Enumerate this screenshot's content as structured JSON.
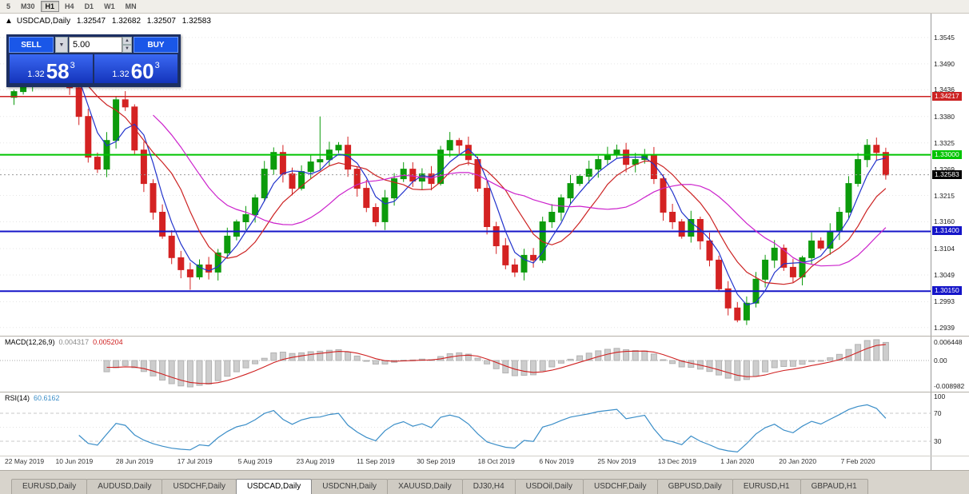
{
  "toolbar": {
    "timeframes": [
      "5",
      "M30",
      "H1",
      "H4",
      "D1",
      "W1",
      "MN"
    ],
    "active": "H1"
  },
  "chart_header": {
    "icon": "▲",
    "symbol": "USDCAD,Daily",
    "open": "1.32547",
    "high": "1.32682",
    "low": "1.32507",
    "close": "1.32583"
  },
  "trade_panel": {
    "sell_label": "SELL",
    "buy_label": "BUY",
    "volume": "5.00",
    "sell_price": {
      "prefix": "1.32",
      "big": "58",
      "sup": "3"
    },
    "buy_price": {
      "prefix": "1.32",
      "big": "60",
      "sup": "3"
    }
  },
  "chart_data": {
    "type": "candlestick",
    "symbol": "USDCAD",
    "timeframe": "Daily",
    "ylim": [
      1.2922,
      1.3595
    ],
    "y_ticks": [
      "1.3545",
      "1.3490",
      "1.3436",
      "1.3380",
      "1.3325",
      "1.3269",
      "1.3215",
      "1.3160",
      "1.3104",
      "1.3049",
      "1.2993",
      "1.2939"
    ],
    "x_labels": [
      "22 May 2019",
      "10 Jun 2019",
      "28 Jun 2019",
      "17 Jul 2019",
      "5 Aug 2019",
      "23 Aug 2019",
      "11 Sep 2019",
      "30 Sep 2019",
      "18 Oct 2019",
      "6 Nov 2019",
      "25 Nov 2019",
      "13 Dec 2019",
      "1 Jan 2020",
      "20 Jan 2020",
      "7 Feb 2020"
    ],
    "open_first": 1.342,
    "closes": [
      1.3432,
      1.3445,
      1.347,
      1.3505,
      1.352,
      1.3495,
      1.344,
      1.338,
      1.3295,
      1.327,
      1.333,
      1.3415,
      1.34,
      1.331,
      1.324,
      1.318,
      1.313,
      1.3085,
      1.306,
      1.3045,
      1.307,
      1.3055,
      1.3095,
      1.313,
      1.316,
      1.3175,
      1.321,
      1.327,
      1.3305,
      1.326,
      1.323,
      1.3265,
      1.3285,
      1.329,
      1.331,
      1.332,
      1.327,
      1.323,
      1.319,
      1.316,
      1.321,
      1.325,
      1.327,
      1.3245,
      1.326,
      1.324,
      1.331,
      1.333,
      1.332,
      1.329,
      1.323,
      1.315,
      1.311,
      1.307,
      1.3055,
      1.309,
      1.308,
      1.316,
      1.318,
      1.321,
      1.324,
      1.3255,
      1.327,
      1.329,
      1.33,
      1.331,
      1.328,
      1.329,
      1.33,
      1.325,
      1.318,
      1.316,
      1.313,
      1.3165,
      1.312,
      1.308,
      1.302,
      1.298,
      1.2955,
      1.299,
      1.304,
      1.308,
      1.3105,
      1.3065,
      1.3045,
      1.3085,
      1.312,
      1.3105,
      1.314,
      1.318,
      1.324,
      1.329,
      1.332,
      1.3305,
      1.3258
    ],
    "spikes": [
      {
        "i": 4,
        "high": 1.3545
      },
      {
        "i": 19,
        "low": 1.3018
      },
      {
        "i": 33,
        "high": 1.338
      },
      {
        "i": 78,
        "low": 1.295
      }
    ],
    "candle_up_color": "#0c9b0c",
    "candle_down_color": "#d42222",
    "levels": [
      {
        "value": 1.34217,
        "label": "1.34217",
        "color": "#cc2222",
        "width": 1.5
      },
      {
        "value": 1.33,
        "label": "1.33000",
        "color": "#00c400",
        "width": 2
      },
      {
        "value": 1.314,
        "label": "1.31400",
        "color": "#1515c8",
        "width": 2
      },
      {
        "value": 1.3015,
        "label": "1.30150",
        "color": "#1515c8",
        "width": 2
      }
    ],
    "current_price": {
      "value": 1.32583,
      "label": "1.32583",
      "badge_color": "#000000"
    },
    "moving_averages": [
      {
        "name": "fast-ma",
        "period": 4,
        "color": "#2233cc"
      },
      {
        "name": "medium-ma",
        "period": 8,
        "color": "#cc2222"
      },
      {
        "name": "slow-ma",
        "period": 16,
        "color": "#cc22cc"
      }
    ],
    "macd": {
      "label": "MACD(12,26,9)",
      "value_main": "0.004317",
      "value_signal": "0.005204",
      "axis_labels": [
        "0.006448",
        "0.00",
        "-0.008982"
      ],
      "histogram_color": "#cdcdcd",
      "signal_color": "#cf2020"
    },
    "rsi": {
      "label": "RSI(14)",
      "value": "60.6162",
      "axis_labels": [
        "100",
        "70",
        "30"
      ],
      "line_color": "#3b8ec8"
    }
  },
  "tabs": {
    "items": [
      "EURUSD,Daily",
      "AUDUSD,Daily",
      "USDCHF,Daily",
      "USDCAD,Daily",
      "USDCNH,Daily",
      "XAUUSD,Daily",
      "DJ30,H4",
      "USDOil,Daily",
      "USDCHF,Daily",
      "GBPUSD,Daily",
      "EURUSD,H1",
      "GBPAUD,H1"
    ],
    "active_index": 3
  }
}
